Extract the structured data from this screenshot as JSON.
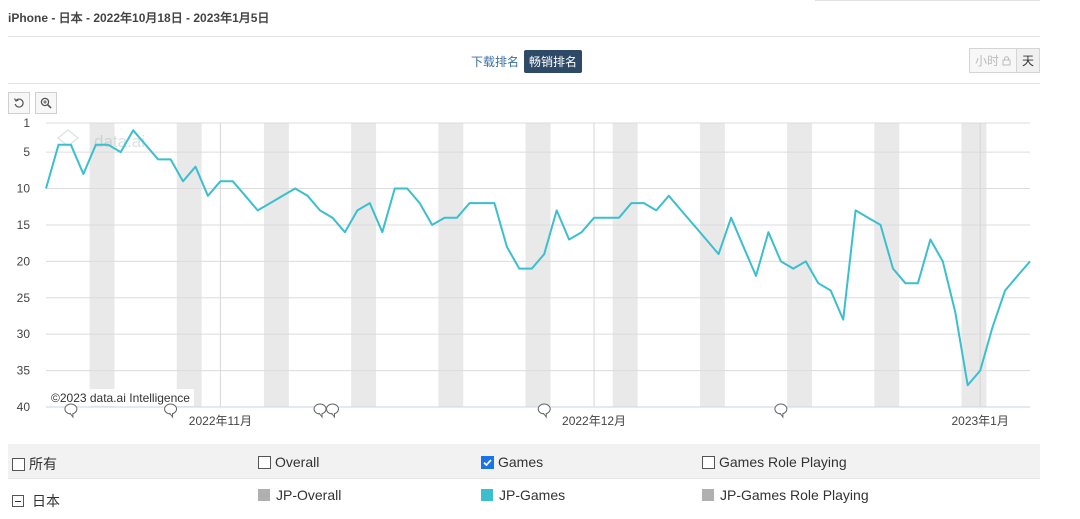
{
  "header": {
    "title": "iPhone - 日本 - 2022年10月18日 - 2023年1月5日"
  },
  "tabs": [
    {
      "label": "下载排名",
      "active": false
    },
    {
      "label": "畅销排名",
      "active": true
    }
  ],
  "granularity": {
    "hour": "小时",
    "day": "天",
    "active": "天"
  },
  "toolbar": {
    "reset": "reset-icon",
    "zoom": "zoom-icon"
  },
  "chart_data": {
    "type": "line",
    "watermark": "data.ai",
    "copyright": "©2023 data.ai Intelligence",
    "y_inverted": true,
    "ylim": [
      1,
      40
    ],
    "y_ticks": [
      1,
      5,
      10,
      15,
      20,
      25,
      30,
      35,
      40
    ],
    "start_date": "2022-10-18",
    "end_date": "2023-01-05",
    "x_ticks": [
      {
        "label": "2022年11月",
        "date": "2022-11-01"
      },
      {
        "label": "2022年12月",
        "date": "2022-12-01"
      },
      {
        "label": "2023年1月",
        "date": "2023-01-01"
      }
    ],
    "weekend_shading": true,
    "series": [
      {
        "name": "JP-Games",
        "color": "#3bbfcf",
        "values": [
          10,
          4,
          4,
          8,
          4,
          4,
          5,
          2,
          4,
          6,
          6,
          9,
          7,
          11,
          9,
          9,
          11,
          13,
          12,
          11,
          10,
          11,
          13,
          14,
          16,
          13,
          12,
          16,
          10,
          10,
          12,
          15,
          14,
          14,
          12,
          12,
          12,
          18,
          21,
          21,
          19,
          13,
          17,
          16,
          14,
          14,
          14,
          12,
          12,
          13,
          11,
          13,
          15,
          17,
          19,
          14,
          18,
          22,
          16,
          20,
          21,
          20,
          23,
          24,
          28,
          13,
          14,
          15,
          21,
          23,
          23,
          17,
          20,
          27,
          37,
          35,
          29,
          24,
          22,
          20
        ]
      }
    ],
    "annotation_dates": [
      "2022-10-20",
      "2022-10-28",
      "2022-11-09",
      "2022-11-10",
      "2022-11-27",
      "2022-12-16"
    ]
  },
  "legend": {
    "row1": [
      {
        "label": "所有",
        "checked": false
      },
      {
        "label": "Overall",
        "checked": false
      },
      {
        "label": "Games",
        "checked": true
      },
      {
        "label": "Games Role Playing",
        "checked": false
      }
    ],
    "row2": [
      {
        "label": "日本",
        "kind": "collapse"
      },
      {
        "label": "JP-Overall",
        "color": "#b0b0b0"
      },
      {
        "label": "JP-Games",
        "color": "#3bbfcf"
      },
      {
        "label": "JP-Games Role Playing",
        "color": "#b0b0b0"
      }
    ]
  }
}
